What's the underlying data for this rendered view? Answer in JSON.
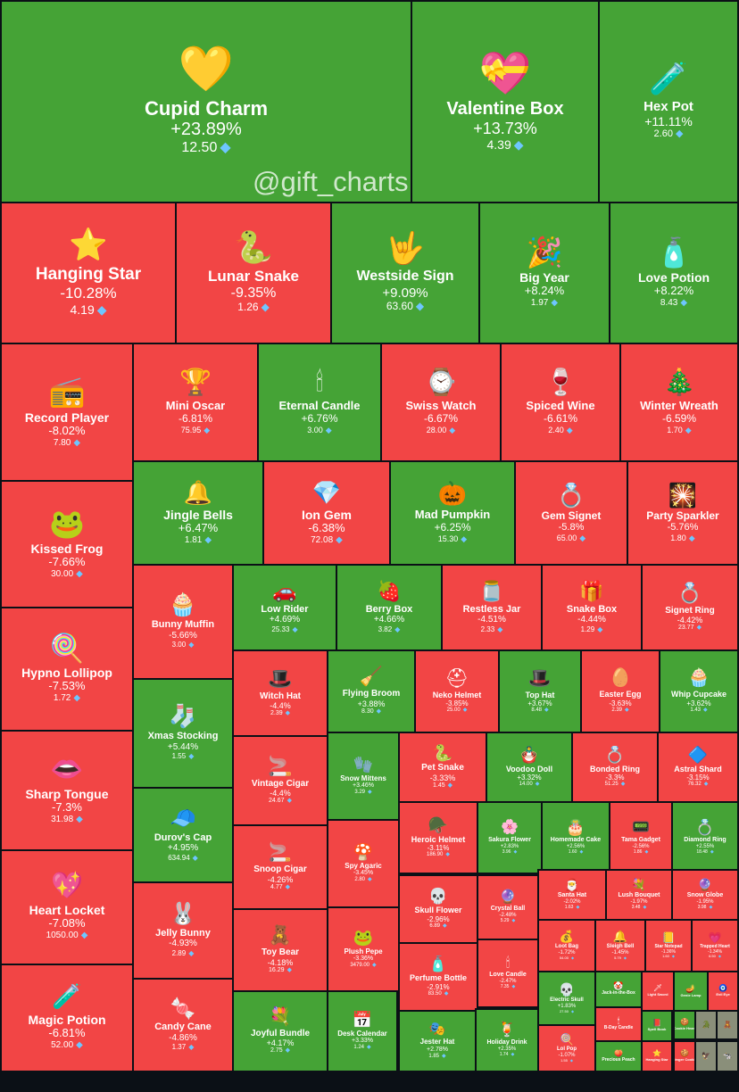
{
  "watermark": "@gift_charts",
  "colors": {
    "up": "#45a336",
    "down": "#f24545",
    "border": "#0b1016",
    "gem": "#6ec6ff"
  },
  "chart_data": {
    "type": "treemap",
    "metric": "percent change",
    "currency_icon": "diamond-icon",
    "items": [
      {
        "name": "Cupid Charm",
        "change": "+23.89%",
        "price": "12.50",
        "icon": "💛"
      },
      {
        "name": "Valentine Box",
        "change": "+13.73%",
        "price": "4.39",
        "icon": "💝"
      },
      {
        "name": "Hex Pot",
        "change": "+11.11%",
        "price": "2.60",
        "icon": "🧪"
      },
      {
        "name": "Hanging Star",
        "change": "-10.28%",
        "price": "4.19",
        "icon": "⭐"
      },
      {
        "name": "Lunar Snake",
        "change": "-9.35%",
        "price": "1.26",
        "icon": "🐍"
      },
      {
        "name": "Westside Sign",
        "change": "+9.09%",
        "price": "63.60",
        "icon": "🤟"
      },
      {
        "name": "Big Year",
        "change": "+8.24%",
        "price": "1.97",
        "icon": "🎉"
      },
      {
        "name": "Love Potion",
        "change": "+8.22%",
        "price": "8.43",
        "icon": "🧴"
      },
      {
        "name": "Record Player",
        "change": "-8.02%",
        "price": "7.80",
        "icon": "📻"
      },
      {
        "name": "Mini Oscar",
        "change": "-6.81%",
        "price": "75.95",
        "icon": "🏆"
      },
      {
        "name": "Eternal Candle",
        "change": "+6.76%",
        "price": "3.00",
        "icon": "🕯"
      },
      {
        "name": "Swiss Watch",
        "change": "-6.67%",
        "price": "28.00",
        "icon": "⌚"
      },
      {
        "name": "Spiced Wine",
        "change": "-6.61%",
        "price": "2.40",
        "icon": "🍷"
      },
      {
        "name": "Winter Wreath",
        "change": "-6.59%",
        "price": "1.70",
        "icon": "🎄"
      },
      {
        "name": "Kissed Frog",
        "change": "-7.66%",
        "price": "30.00",
        "icon": "🐸"
      },
      {
        "name": "Jingle Bells",
        "change": "+6.47%",
        "price": "1.81",
        "icon": "🔔"
      },
      {
        "name": "Ion Gem",
        "change": "-6.38%",
        "price": "72.08",
        "icon": "💎"
      },
      {
        "name": "Mad Pumpkin",
        "change": "+6.25%",
        "price": "15.30",
        "icon": "🎃"
      },
      {
        "name": "Gem Signet",
        "change": "-5.8%",
        "price": "65.00",
        "icon": "💍"
      },
      {
        "name": "Party Sparkler",
        "change": "-5.76%",
        "price": "1.80",
        "icon": "🎇"
      },
      {
        "name": "Bunny Muffin",
        "change": "-5.66%",
        "price": "3.00",
        "icon": "🧁"
      },
      {
        "name": "Low Rider",
        "change": "+4.69%",
        "price": "25.33",
        "icon": "🚗"
      },
      {
        "name": "Berry Box",
        "change": "+4.66%",
        "price": "3.82",
        "icon": "🍓"
      },
      {
        "name": "Restless Jar",
        "change": "-4.51%",
        "price": "2.33",
        "icon": "🫙"
      },
      {
        "name": "Snake Box",
        "change": "-4.44%",
        "price": "1.29",
        "icon": "🎁"
      },
      {
        "name": "Signet Ring",
        "change": "-4.42%",
        "price": "23.77",
        "icon": "💍"
      },
      {
        "name": "Hypno Lollipop",
        "change": "-7.53%",
        "price": "1.72",
        "icon": "🍭"
      },
      {
        "name": "Xmas Stocking",
        "change": "+5.44%",
        "price": "1.55",
        "icon": "🧦"
      },
      {
        "name": "Witch Hat",
        "change": "-4.4%",
        "price": "2.39",
        "icon": "🎩"
      },
      {
        "name": "Flying Broom",
        "change": "+3.88%",
        "price": "8.30",
        "icon": "🧹"
      },
      {
        "name": "Neko Helmet",
        "change": "-3.85%",
        "price": "25.00",
        "icon": "⛑"
      },
      {
        "name": "Top Hat",
        "change": "+3.67%",
        "price": "8.48",
        "icon": "🎩"
      },
      {
        "name": "Easter Egg",
        "change": "-3.63%",
        "price": "2.39",
        "icon": "🥚"
      },
      {
        "name": "Whip Cupcake",
        "change": "+3.62%",
        "price": "1.43",
        "icon": "🧁"
      },
      {
        "name": "Vintage Cigar",
        "change": "-4.4%",
        "price": "24.67",
        "icon": "🚬"
      },
      {
        "name": "Snow Mittens",
        "change": "+3.46%",
        "price": "3.29",
        "icon": "🧤"
      },
      {
        "name": "Pet Snake",
        "change": "-3.33%",
        "price": "1.45",
        "icon": "🐍"
      },
      {
        "name": "Voodoo Doll",
        "change": "+3.32%",
        "price": "14.00",
        "icon": "🪆"
      },
      {
        "name": "Bonded Ring",
        "change": "-3.3%",
        "price": "51.25",
        "icon": "💍"
      },
      {
        "name": "Astral Shard",
        "change": "-3.15%",
        "price": "76.32",
        "icon": "🔷"
      },
      {
        "name": "Sharp Tongue",
        "change": "-7.3%",
        "price": "31.98",
        "icon": "👄"
      },
      {
        "name": "Durov's Cap",
        "change": "+4.95%",
        "price": "634.94",
        "icon": "🧢"
      },
      {
        "name": "Snoop Cigar",
        "change": "-4.26%",
        "price": "4.77",
        "icon": "🚬"
      },
      {
        "name": "Spy Agaric",
        "change": "-3.45%",
        "price": "2.80",
        "icon": "🍄"
      },
      {
        "name": "Heroic Helmet",
        "change": "-3.11%",
        "price": "186.90",
        "icon": "🪖"
      },
      {
        "name": "Sakura Flower",
        "change": "+2.83%",
        "price": "3.96",
        "icon": "🌸"
      },
      {
        "name": "Homemade Cake",
        "change": "+2.56%",
        "price": "1.60",
        "icon": "🎂"
      },
      {
        "name": "Tama Gadget",
        "change": "-2.56%",
        "price": "1.86",
        "icon": "📟"
      },
      {
        "name": "Diamond Ring",
        "change": "+2.55%",
        "price": "18.48",
        "icon": "💍"
      },
      {
        "name": "Heart Locket",
        "change": "-7.08%",
        "price": "1050.00",
        "icon": "💖"
      },
      {
        "name": "Jelly Bunny",
        "change": "-4.93%",
        "price": "2.89",
        "icon": "🐰"
      },
      {
        "name": "Toy Bear",
        "change": "-4.18%",
        "price": "16.29",
        "icon": "🧸"
      },
      {
        "name": "Plush Pepe",
        "change": "-3.36%",
        "price": "3479.00",
        "icon": "🐸"
      },
      {
        "name": "Skull Flower",
        "change": "-2.96%",
        "price": "6.89",
        "icon": "💀"
      },
      {
        "name": "Perfume Bottle",
        "change": "-2.91%",
        "price": "83.50",
        "icon": "🧴"
      },
      {
        "name": "Crystal Ball",
        "change": "-2.48%",
        "price": "5.29",
        "icon": "🔮"
      },
      {
        "name": "Love Candle",
        "change": "-2.47%",
        "price": "7.35",
        "icon": "🕯"
      },
      {
        "name": "Santa Hat",
        "change": "-2.02%",
        "price": "1.63",
        "icon": "🎅"
      },
      {
        "name": "Lush Bouquet",
        "change": "-1.97%",
        "price": "3.48",
        "icon": "💐"
      },
      {
        "name": "Snow Globe",
        "change": "-1.95%",
        "price": "3.98",
        "icon": "🔮"
      },
      {
        "name": "Loot Bag",
        "change": "-1.72%",
        "price": "54.00",
        "icon": "💰"
      },
      {
        "name": "Sleigh Bell",
        "change": "-1.45%",
        "price": "5.79",
        "icon": "🔔"
      },
      {
        "name": "Star Notepad",
        "change": "-1.36%",
        "price": "1.60",
        "icon": "📒"
      },
      {
        "name": "Trapped Heart",
        "change": "-1.34%",
        "price": "6.50",
        "icon": "💗"
      },
      {
        "name": "Electric Skull",
        "change": "+1.83%",
        "price": "27.50",
        "icon": "💀"
      },
      {
        "name": "Lol Pop",
        "change": "-1.07%",
        "price": "1.55",
        "icon": "🍭"
      },
      {
        "name": "Magic Potion",
        "change": "-6.81%",
        "price": "52.00",
        "icon": "🧪"
      },
      {
        "name": "Candy Cane",
        "change": "-4.86%",
        "price": "1.37",
        "icon": "🍬"
      },
      {
        "name": "Joyful Bundle",
        "change": "+4.17%",
        "price": "2.75",
        "icon": "💐"
      },
      {
        "name": "Desk Calendar",
        "change": "+3.33%",
        "price": "1.24",
        "icon": "📅"
      },
      {
        "name": "Jester Hat",
        "change": "+2.78%",
        "price": "1.85",
        "icon": "🎭"
      },
      {
        "name": "Holiday Drink",
        "change": "+2.35%",
        "price": "1.74",
        "icon": "🍹"
      },
      {
        "name": "Jack-in-the-Box",
        "change": "",
        "price": "",
        "icon": "🤡"
      },
      {
        "name": "B-Day Candle",
        "change": "",
        "price": "",
        "icon": "🕯"
      },
      {
        "name": "Precious Peach",
        "change": "",
        "price": "",
        "icon": "🍑"
      },
      {
        "name": "Light Sword",
        "change": "",
        "price": "",
        "icon": "🗡"
      },
      {
        "name": "Genie Lamp",
        "change": "",
        "price": "",
        "icon": "🪔"
      },
      {
        "name": "Evil Eye",
        "change": "",
        "price": "",
        "icon": "🧿"
      },
      {
        "name": "Spell Book",
        "change": "",
        "price": "",
        "icon": "📕"
      },
      {
        "name": "Hanging Star",
        "change": "",
        "price": "",
        "icon": "⭐"
      },
      {
        "name": "Cookie Heart",
        "change": "",
        "price": "",
        "icon": "🍪"
      },
      {
        "name": "Ginger Cookie",
        "change": "",
        "price": "",
        "icon": "🍪"
      },
      {
        "name": "",
        "change": "",
        "price": "",
        "icon": "🐊"
      },
      {
        "name": "",
        "change": "",
        "price": "",
        "icon": "🦅"
      },
      {
        "name": "",
        "change": "",
        "price": "",
        "icon": "🧸"
      },
      {
        "name": "",
        "change": "",
        "price": "",
        "icon": "🐄"
      },
      {
        "name": "",
        "change": "",
        "price": "",
        "icon": "👑"
      },
      {
        "name": "",
        "change": "",
        "price": "",
        "icon": "🐾"
      },
      {
        "name": "",
        "change": "",
        "price": "",
        "icon": "🏺"
      },
      {
        "name": "",
        "change": "",
        "price": "",
        "icon": "💀"
      },
      {
        "name": "",
        "change": "",
        "price": "",
        "icon": "🍎"
      },
      {
        "name": "",
        "change": "",
        "price": "",
        "icon": "🎲"
      }
    ]
  }
}
